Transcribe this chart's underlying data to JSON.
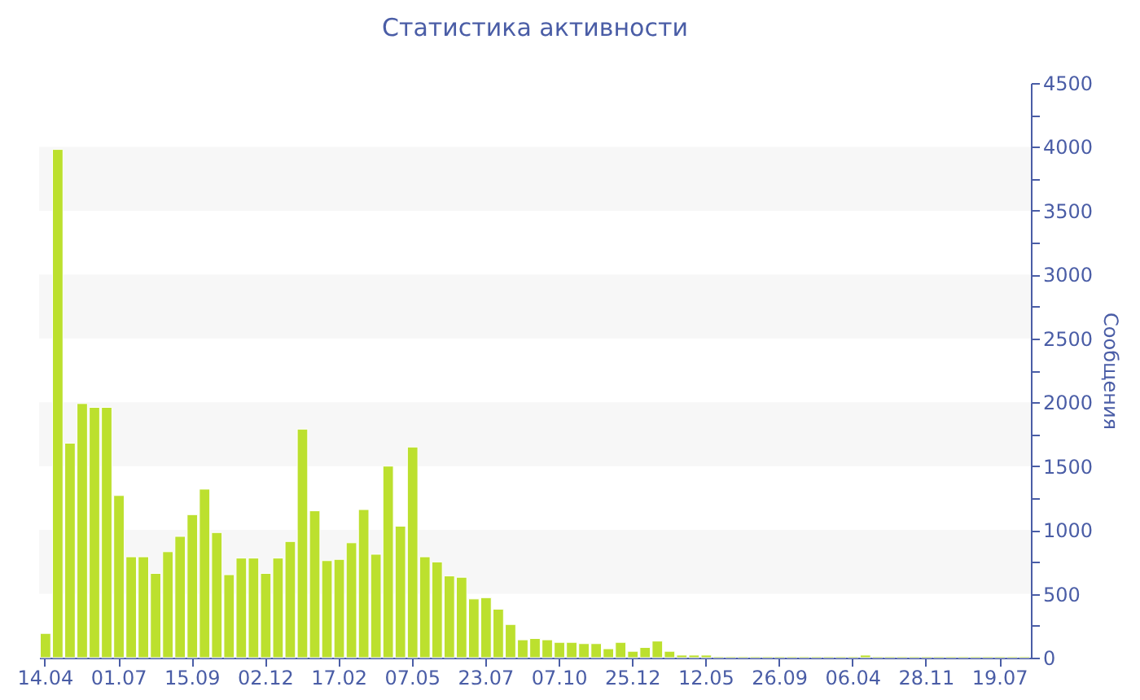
{
  "chart_data": {
    "type": "bar",
    "title": "Статистика активности",
    "ylabel": "Сообщения",
    "categories": [
      "14.04",
      null,
      null,
      null,
      null,
      null,
      "01.07",
      null,
      null,
      null,
      null,
      null,
      "15.09",
      null,
      null,
      null,
      null,
      null,
      "02.12",
      null,
      null,
      null,
      null,
      null,
      "17.02",
      null,
      null,
      null,
      null,
      null,
      "07.05",
      null,
      null,
      null,
      null,
      null,
      "23.07",
      null,
      null,
      null,
      null,
      null,
      "07.10",
      null,
      null,
      null,
      null,
      null,
      "25.12",
      null,
      null,
      null,
      null,
      null,
      "12.05",
      null,
      null,
      null,
      null,
      null,
      "26.09",
      null,
      null,
      null,
      null,
      null,
      "06.04",
      null,
      null,
      null,
      null,
      null,
      "28.11",
      null,
      null,
      null,
      null,
      null,
      "19.07",
      null,
      null
    ],
    "values": [
      190,
      3980,
      1680,
      1990,
      1960,
      1960,
      1270,
      790,
      790,
      660,
      830,
      950,
      1120,
      1320,
      980,
      650,
      780,
      780,
      660,
      780,
      910,
      1790,
      1150,
      760,
      770,
      900,
      1160,
      810,
      1500,
      1030,
      1650,
      790,
      750,
      640,
      630,
      460,
      470,
      380,
      260,
      140,
      150,
      140,
      120,
      120,
      110,
      110,
      70,
      120,
      50,
      80,
      130,
      50,
      20,
      20,
      20,
      10,
      10,
      10,
      10,
      10,
      10,
      10,
      10,
      10,
      10,
      10,
      10,
      20,
      10,
      10,
      10,
      10,
      10,
      10,
      10,
      10,
      10,
      10,
      10,
      10,
      10
    ],
    "color": "#bce02e",
    "ylim": [
      0,
      4500
    ],
    "yticks": [
      0,
      {
        "value": 250,
        "label": null
      },
      500,
      {
        "value": 750,
        "label": null
      },
      1000,
      {
        "value": 1250,
        "label": null
      },
      1500,
      {
        "value": 1750,
        "label": null
      },
      2000,
      {
        "value": 2250,
        "label": null
      },
      2500,
      {
        "value": 2750,
        "label": null
      },
      3000,
      {
        "value": 3250,
        "label": null
      },
      3500,
      {
        "value": 3750,
        "label": null
      },
      4000,
      {
        "value": 4250,
        "label": null
      },
      4500
    ],
    "bands": [
      {
        "axis": "y",
        "from": 500,
        "to": 1000,
        "color": "#f7f7f7"
      },
      {
        "axis": "y",
        "from": 1500,
        "to": 2000,
        "color": "#f7f7f7"
      },
      {
        "axis": "y",
        "from": 2500,
        "to": 3000,
        "color": "#f7f7f7"
      },
      {
        "axis": "y",
        "from": 3500,
        "to": 4000,
        "color": "#f7f7f7"
      }
    ],
    "grid": false
  }
}
